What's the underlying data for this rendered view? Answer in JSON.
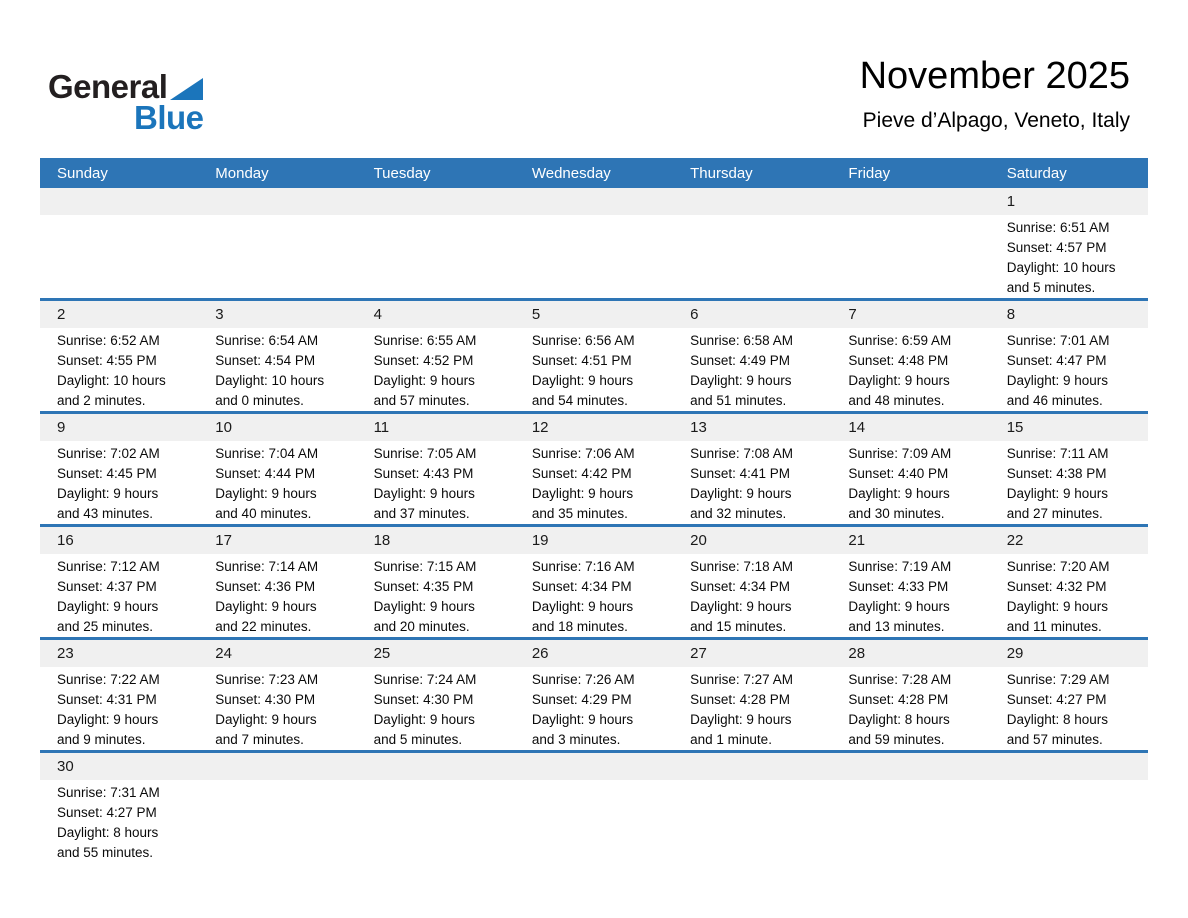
{
  "logo": {
    "general": "General",
    "blue": "Blue"
  },
  "header": {
    "title": "November 2025",
    "subtitle": "Pieve d’Alpago, Veneto, Italy"
  },
  "colors": {
    "header_blue": "#2E75B5",
    "separator_blue": "#2E75B5",
    "strip_gray": "#F0F0F0",
    "logo_blue": "#1B75BB"
  },
  "calendar": {
    "weekdays": [
      "Sunday",
      "Monday",
      "Tuesday",
      "Wednesday",
      "Thursday",
      "Friday",
      "Saturday"
    ],
    "labels": {
      "sunrise": "Sunrise:",
      "sunset": "Sunset:",
      "daylight": "Daylight:"
    },
    "weeks": [
      [
        null,
        null,
        null,
        null,
        null,
        null,
        1
      ],
      [
        2,
        3,
        4,
        5,
        6,
        7,
        8
      ],
      [
        9,
        10,
        11,
        12,
        13,
        14,
        15
      ],
      [
        16,
        17,
        18,
        19,
        20,
        21,
        22
      ],
      [
        23,
        24,
        25,
        26,
        27,
        28,
        29
      ],
      [
        30,
        null,
        null,
        null,
        null,
        null,
        null
      ]
    ],
    "days": [
      {
        "d": 1,
        "rise": "6:51 AM",
        "set": "4:57 PM",
        "daylight": "10 hours",
        "daylight2": "and 5 minutes."
      },
      {
        "d": 2,
        "rise": "6:52 AM",
        "set": "4:55 PM",
        "daylight": "10 hours",
        "daylight2": "and 2 minutes."
      },
      {
        "d": 3,
        "rise": "6:54 AM",
        "set": "4:54 PM",
        "daylight": "10 hours",
        "daylight2": "and 0 minutes."
      },
      {
        "d": 4,
        "rise": "6:55 AM",
        "set": "4:52 PM",
        "daylight": "9 hours",
        "daylight2": "and 57 minutes."
      },
      {
        "d": 5,
        "rise": "6:56 AM",
        "set": "4:51 PM",
        "daylight": "9 hours",
        "daylight2": "and 54 minutes."
      },
      {
        "d": 6,
        "rise": "6:58 AM",
        "set": "4:49 PM",
        "daylight": "9 hours",
        "daylight2": "and 51 minutes."
      },
      {
        "d": 7,
        "rise": "6:59 AM",
        "set": "4:48 PM",
        "daylight": "9 hours",
        "daylight2": "and 48 minutes."
      },
      {
        "d": 8,
        "rise": "7:01 AM",
        "set": "4:47 PM",
        "daylight": "9 hours",
        "daylight2": "and 46 minutes."
      },
      {
        "d": 9,
        "rise": "7:02 AM",
        "set": "4:45 PM",
        "daylight": "9 hours",
        "daylight2": "and 43 minutes."
      },
      {
        "d": 10,
        "rise": "7:04 AM",
        "set": "4:44 PM",
        "daylight": "9 hours",
        "daylight2": "and 40 minutes."
      },
      {
        "d": 11,
        "rise": "7:05 AM",
        "set": "4:43 PM",
        "daylight": "9 hours",
        "daylight2": "and 37 minutes."
      },
      {
        "d": 12,
        "rise": "7:06 AM",
        "set": "4:42 PM",
        "daylight": "9 hours",
        "daylight2": "and 35 minutes."
      },
      {
        "d": 13,
        "rise": "7:08 AM",
        "set": "4:41 PM",
        "daylight": "9 hours",
        "daylight2": "and 32 minutes."
      },
      {
        "d": 14,
        "rise": "7:09 AM",
        "set": "4:40 PM",
        "daylight": "9 hours",
        "daylight2": "and 30 minutes."
      },
      {
        "d": 15,
        "rise": "7:11 AM",
        "set": "4:38 PM",
        "daylight": "9 hours",
        "daylight2": "and 27 minutes."
      },
      {
        "d": 16,
        "rise": "7:12 AM",
        "set": "4:37 PM",
        "daylight": "9 hours",
        "daylight2": "and 25 minutes."
      },
      {
        "d": 17,
        "rise": "7:14 AM",
        "set": "4:36 PM",
        "daylight": "9 hours",
        "daylight2": "and 22 minutes."
      },
      {
        "d": 18,
        "rise": "7:15 AM",
        "set": "4:35 PM",
        "daylight": "9 hours",
        "daylight2": "and 20 minutes."
      },
      {
        "d": 19,
        "rise": "7:16 AM",
        "set": "4:34 PM",
        "daylight": "9 hours",
        "daylight2": "and 18 minutes."
      },
      {
        "d": 20,
        "rise": "7:18 AM",
        "set": "4:34 PM",
        "daylight": "9 hours",
        "daylight2": "and 15 minutes."
      },
      {
        "d": 21,
        "rise": "7:19 AM",
        "set": "4:33 PM",
        "daylight": "9 hours",
        "daylight2": "and 13 minutes."
      },
      {
        "d": 22,
        "rise": "7:20 AM",
        "set": "4:32 PM",
        "daylight": "9 hours",
        "daylight2": "and 11 minutes."
      },
      {
        "d": 23,
        "rise": "7:22 AM",
        "set": "4:31 PM",
        "daylight": "9 hours",
        "daylight2": "and 9 minutes."
      },
      {
        "d": 24,
        "rise": "7:23 AM",
        "set": "4:30 PM",
        "daylight": "9 hours",
        "daylight2": "and 7 minutes."
      },
      {
        "d": 25,
        "rise": "7:24 AM",
        "set": "4:30 PM",
        "daylight": "9 hours",
        "daylight2": "and 5 minutes."
      },
      {
        "d": 26,
        "rise": "7:26 AM",
        "set": "4:29 PM",
        "daylight": "9 hours",
        "daylight2": "and 3 minutes."
      },
      {
        "d": 27,
        "rise": "7:27 AM",
        "set": "4:28 PM",
        "daylight": "9 hours",
        "daylight2": "and 1 minute."
      },
      {
        "d": 28,
        "rise": "7:28 AM",
        "set": "4:28 PM",
        "daylight": "8 hours",
        "daylight2": "and 59 minutes."
      },
      {
        "d": 29,
        "rise": "7:29 AM",
        "set": "4:27 PM",
        "daylight": "8 hours",
        "daylight2": "and 57 minutes."
      },
      {
        "d": 30,
        "rise": "7:31 AM",
        "set": "4:27 PM",
        "daylight": "8 hours",
        "daylight2": "and 55 minutes."
      }
    ]
  }
}
